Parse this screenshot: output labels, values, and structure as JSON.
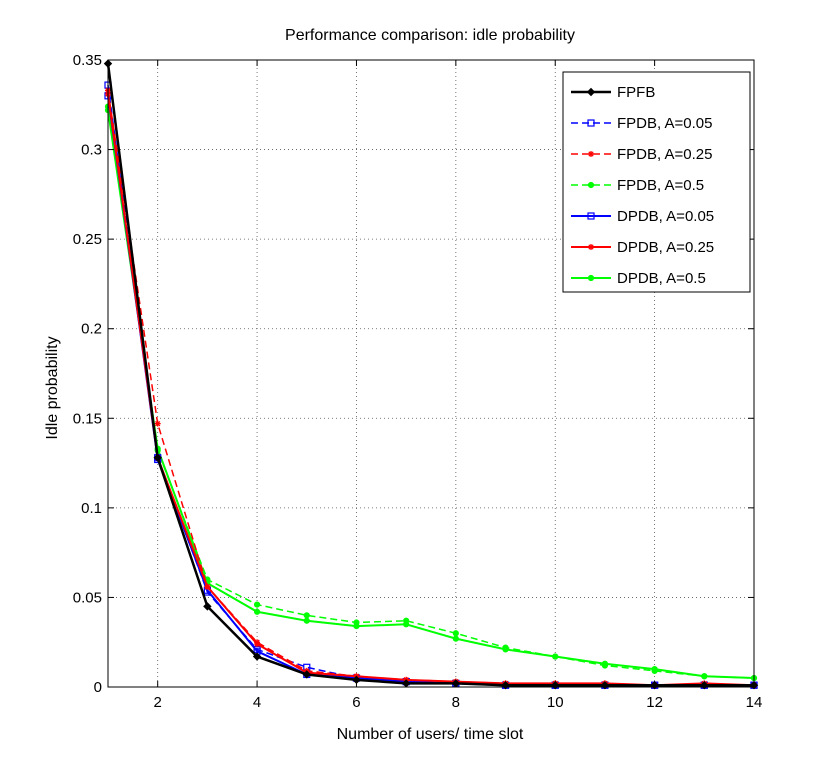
{
  "chart_data": {
    "type": "line",
    "title": "Performance comparison: idle probability",
    "xlabel": "Number of users/ time slot",
    "ylabel": "Idle probability",
    "xlim": [
      1,
      14
    ],
    "ylim": [
      0,
      0.35
    ],
    "xticks": [
      2,
      4,
      6,
      8,
      10,
      12,
      14
    ],
    "xtick_labels": [
      "2",
      "4",
      "6",
      "8",
      "10",
      "12",
      "14"
    ],
    "yticks": [
      0,
      0.05,
      0.1,
      0.15,
      0.2,
      0.25,
      0.3,
      0.35
    ],
    "ytick_labels": [
      "0",
      "0.05",
      "0.1",
      "0.15",
      "0.2",
      "0.25",
      "0.3",
      "0.35"
    ],
    "grid": true,
    "legend_position": "top-right",
    "x": [
      1,
      2,
      3,
      4,
      5,
      6,
      7,
      8,
      9,
      10,
      11,
      12,
      13,
      14
    ],
    "series": [
      {
        "name": "FPFB",
        "color": "#000000",
        "dash": "solid",
        "marker": "diamond",
        "width": 2.5,
        "values": [
          0.348,
          0.128,
          0.045,
          0.017,
          0.007,
          0.004,
          0.002,
          0.002,
          0.001,
          0.001,
          0.001,
          0.001,
          0.001,
          0.001
        ]
      },
      {
        "name": "FPDB, A=0.05",
        "color": "#0000ff",
        "dash": "dashed",
        "marker": "square",
        "width": 1.5,
        "values": [
          0.336,
          0.128,
          0.053,
          0.021,
          0.011,
          0.005,
          0.003,
          0.002,
          0.001,
          0.001,
          0.001,
          0.001,
          0.001,
          0.001
        ]
      },
      {
        "name": "FPDB, A=0.25",
        "color": "#ff0000",
        "dash": "dashed",
        "marker": "star",
        "width": 1.5,
        "values": [
          0.333,
          0.147,
          0.056,
          0.025,
          0.009,
          0.006,
          0.004,
          0.003,
          0.002,
          0.002,
          0.002,
          0.001,
          0.001,
          0.001
        ]
      },
      {
        "name": "FPDB, A=0.5",
        "color": "#00ff00",
        "dash": "dashed",
        "marker": "circle",
        "width": 1.5,
        "values": [
          0.324,
          0.132,
          0.06,
          0.046,
          0.04,
          0.036,
          0.037,
          0.03,
          0.022,
          0.017,
          0.012,
          0.009,
          0.006,
          0.005
        ]
      },
      {
        "name": "DPDB, A=0.05",
        "color": "#0000ff",
        "dash": "solid",
        "marker": "square",
        "width": 2,
        "values": [
          0.33,
          0.127,
          0.054,
          0.02,
          0.007,
          0.005,
          0.003,
          0.002,
          0.001,
          0.001,
          0.001,
          0.001,
          0.001,
          0.001
        ]
      },
      {
        "name": "DPDB, A=0.25",
        "color": "#ff0000",
        "dash": "solid",
        "marker": "star",
        "width": 2,
        "values": [
          0.331,
          0.128,
          0.056,
          0.024,
          0.008,
          0.006,
          0.004,
          0.003,
          0.002,
          0.002,
          0.002,
          0.001,
          0.002,
          0.001
        ]
      },
      {
        "name": "DPDB, A=0.5",
        "color": "#00ff00",
        "dash": "solid",
        "marker": "circle",
        "width": 2,
        "values": [
          0.322,
          0.133,
          0.058,
          0.042,
          0.037,
          0.034,
          0.035,
          0.027,
          0.021,
          0.017,
          0.013,
          0.01,
          0.006,
          0.005
        ]
      }
    ]
  }
}
